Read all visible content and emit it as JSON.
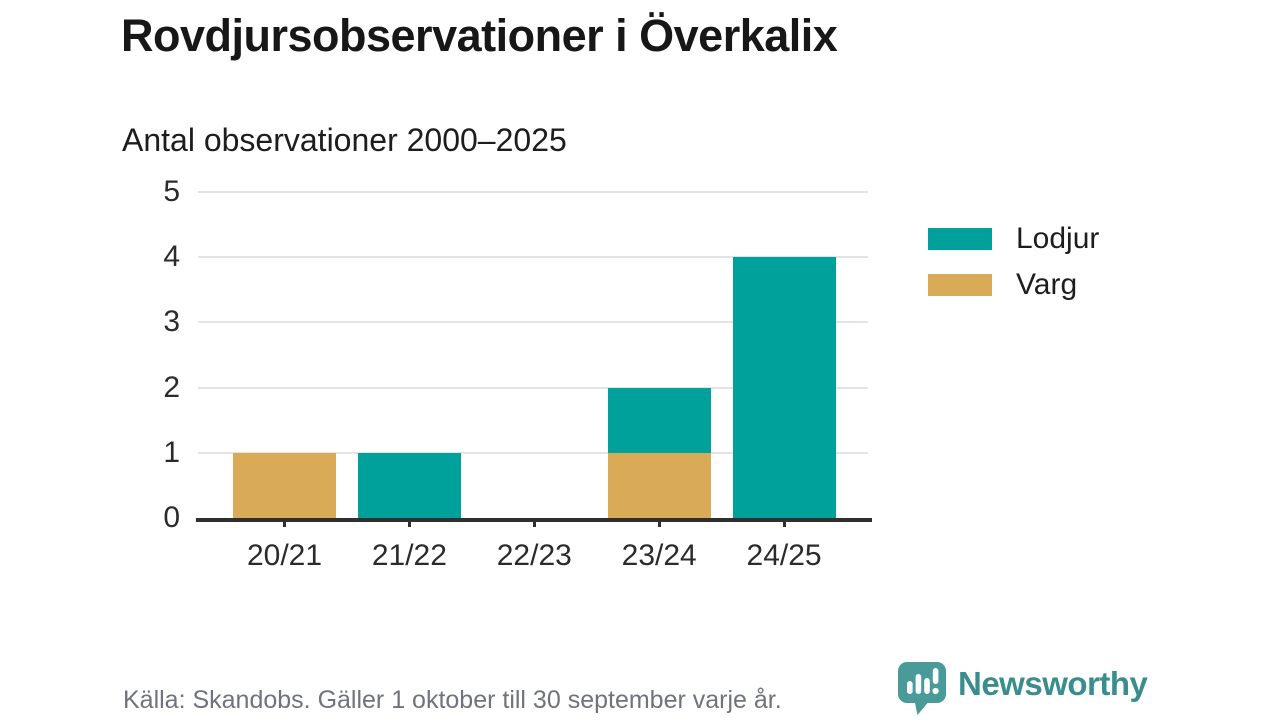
{
  "title": "Rovdjursobservationer i Överkalix",
  "subtitle": "Antal observationer 2000–2025",
  "footer": {
    "source": "Källa: Skandobs. Gäller 1 oktober till 30 september varje år."
  },
  "logo": {
    "name": "Newsworthy",
    "icon": "speech-bubble-bar-chart-icon"
  },
  "colors": {
    "lodjur": "#00a19a",
    "varg": "#d9ab57",
    "grid": "#e4e4e4",
    "axis": "#2f2f2f",
    "title_text": "#171717",
    "footer_text": "#70737d",
    "logo_bubble": "#489b99",
    "logo_text": "#398e8d"
  },
  "chart_data": {
    "type": "bar",
    "stacked": true,
    "title": "Rovdjursobservationer i Överkalix",
    "subtitle": "Antal observationer 2000–2025",
    "categories": [
      "20/21",
      "21/22",
      "22/23",
      "23/24",
      "24/25"
    ],
    "series": [
      {
        "name": "Varg",
        "color_key": "varg",
        "values": [
          1,
          0,
          0,
          1,
          0
        ]
      },
      {
        "name": "Lodjur",
        "color_key": "lodjur",
        "values": [
          0,
          1,
          0,
          1,
          4
        ]
      }
    ],
    "legend": [
      {
        "label": "Lodjur",
        "color_key": "lodjur"
      },
      {
        "label": "Varg",
        "color_key": "varg"
      }
    ],
    "xlabel": "",
    "ylabel": "",
    "ylim": [
      0,
      5
    ],
    "yticks": [
      0,
      1,
      2,
      3,
      4,
      5
    ],
    "grid": true,
    "legend_position": "right"
  }
}
